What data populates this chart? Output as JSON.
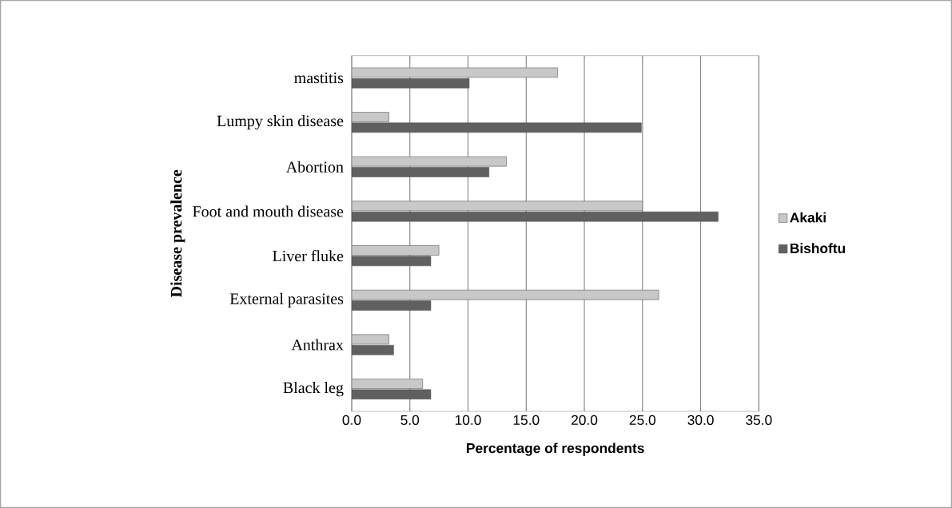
{
  "chart_data": {
    "type": "bar",
    "orientation": "horizontal",
    "xlabel": "Percentage of respondents",
    "ylabel": "Disease prevalence",
    "categories": [
      "mastitis",
      "Lumpy skin disease",
      "Abortion",
      "Foot and mouth disease",
      "Liver fluke",
      "External parasites",
      "Anthrax",
      "Black leg"
    ],
    "series": [
      {
        "name": "Akaki",
        "color": "#c8c8c8",
        "values": [
          17.7,
          3.2,
          13.3,
          25.0,
          7.5,
          26.4,
          3.2,
          6.1
        ]
      },
      {
        "name": "Bishoftu",
        "color": "#606060",
        "values": [
          10.1,
          24.9,
          11.8,
          31.5,
          6.8,
          6.8,
          3.6,
          6.8
        ]
      }
    ],
    "xlim": [
      0,
      35
    ],
    "xticks": [
      {
        "value": 0,
        "label": "0.0"
      },
      {
        "value": 5,
        "label": "5.0"
      },
      {
        "value": 10,
        "label": "10.0"
      },
      {
        "value": 15,
        "label": "15.0"
      },
      {
        "value": 20,
        "label": "20.0"
      },
      {
        "value": 25,
        "label": "25.0"
      },
      {
        "value": 30,
        "label": "30.0"
      },
      {
        "value": 35,
        "label": "35.0"
      }
    ],
    "grid": "x",
    "legend": "right"
  }
}
